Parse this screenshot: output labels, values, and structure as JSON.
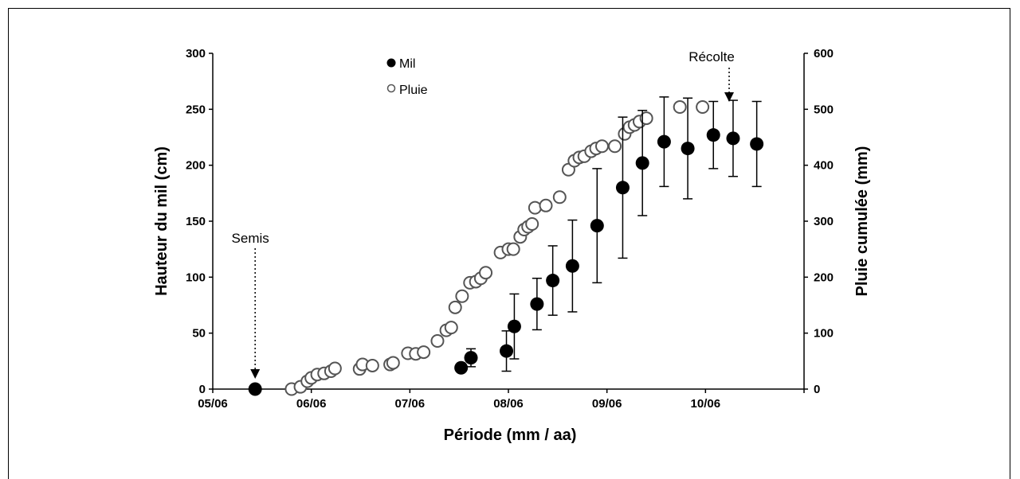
{
  "chart_data": {
    "type": "scatter",
    "xlabel": "Période (mm / aa)",
    "ylabel": "Hauteur du mil (cm)",
    "y2label": "Pluie cumulée (mm)",
    "x_ticks": [
      "05/06",
      "06/06",
      "07/06",
      "08/06",
      "09/06",
      "10/06"
    ],
    "x_range_months": [
      5,
      11
    ],
    "ylim": [
      0,
      300
    ],
    "y_ticks": [
      0,
      50,
      100,
      150,
      200,
      250,
      300
    ],
    "y2lim": [
      0,
      600
    ],
    "y2_ticks": [
      0,
      100,
      200,
      300,
      400,
      500,
      600
    ],
    "grid": false,
    "legend_position": "top-center",
    "annotations": [
      {
        "text": "Semis",
        "x": 5.43,
        "y": 0
      },
      {
        "text": "Récolte",
        "x": 10.24,
        "y": 257
      }
    ],
    "series": [
      {
        "name": "Mil",
        "axis": "left",
        "marker": "filled-circle",
        "color": "#000000",
        "points": [
          {
            "x": 5.43,
            "y": 0
          },
          {
            "x": 7.52,
            "y": 19,
            "err": 3
          },
          {
            "x": 7.62,
            "y": 28,
            "err": 8
          },
          {
            "x": 7.98,
            "y": 34,
            "err": 18
          },
          {
            "x": 8.06,
            "y": 56,
            "err": 29
          },
          {
            "x": 8.29,
            "y": 76,
            "err": 23
          },
          {
            "x": 8.45,
            "y": 97,
            "err": 31
          },
          {
            "x": 8.65,
            "y": 110,
            "err": 41
          },
          {
            "x": 8.9,
            "y": 146,
            "err": 51
          },
          {
            "x": 9.16,
            "y": 180,
            "err": 63
          },
          {
            "x": 9.36,
            "y": 202,
            "err": 47
          },
          {
            "x": 9.58,
            "y": 221,
            "err": 40
          },
          {
            "x": 9.82,
            "y": 215,
            "err": 45
          },
          {
            "x": 10.08,
            "y": 227,
            "err": 30
          },
          {
            "x": 10.28,
            "y": 224,
            "err": 34
          },
          {
            "x": 10.52,
            "y": 219,
            "err": 38
          }
        ]
      },
      {
        "name": "Pluie",
        "axis": "right",
        "marker": "open-circle",
        "color": "#555555",
        "points": [
          {
            "x": 5.8,
            "y": 0
          },
          {
            "x": 5.89,
            "y": 4
          },
          {
            "x": 5.96,
            "y": 14
          },
          {
            "x": 6.0,
            "y": 20
          },
          {
            "x": 6.06,
            "y": 26
          },
          {
            "x": 6.13,
            "y": 28
          },
          {
            "x": 6.2,
            "y": 32
          },
          {
            "x": 6.24,
            "y": 37
          },
          {
            "x": 6.49,
            "y": 36
          },
          {
            "x": 6.52,
            "y": 44
          },
          {
            "x": 6.62,
            "y": 42
          },
          {
            "x": 6.8,
            "y": 44
          },
          {
            "x": 6.83,
            "y": 47
          },
          {
            "x": 6.98,
            "y": 64
          },
          {
            "x": 7.06,
            "y": 63
          },
          {
            "x": 7.14,
            "y": 66
          },
          {
            "x": 7.28,
            "y": 86
          },
          {
            "x": 7.37,
            "y": 105
          },
          {
            "x": 7.42,
            "y": 110
          },
          {
            "x": 7.46,
            "y": 146
          },
          {
            "x": 7.53,
            "y": 166
          },
          {
            "x": 7.61,
            "y": 190
          },
          {
            "x": 7.67,
            "y": 192
          },
          {
            "x": 7.72,
            "y": 198
          },
          {
            "x": 7.77,
            "y": 208
          },
          {
            "x": 7.92,
            "y": 244
          },
          {
            "x": 8.0,
            "y": 250
          },
          {
            "x": 8.05,
            "y": 250
          },
          {
            "x": 8.12,
            "y": 272
          },
          {
            "x": 8.16,
            "y": 285
          },
          {
            "x": 8.2,
            "y": 290
          },
          {
            "x": 8.24,
            "y": 295
          },
          {
            "x": 8.27,
            "y": 324
          },
          {
            "x": 8.38,
            "y": 328
          },
          {
            "x": 8.52,
            "y": 343
          },
          {
            "x": 8.61,
            "y": 392
          },
          {
            "x": 8.67,
            "y": 408
          },
          {
            "x": 8.72,
            "y": 414
          },
          {
            "x": 8.77,
            "y": 416
          },
          {
            "x": 8.84,
            "y": 425
          },
          {
            "x": 8.89,
            "y": 430
          },
          {
            "x": 8.95,
            "y": 434
          },
          {
            "x": 9.08,
            "y": 434
          },
          {
            "x": 9.18,
            "y": 456
          },
          {
            "x": 9.23,
            "y": 468
          },
          {
            "x": 9.28,
            "y": 472
          },
          {
            "x": 9.33,
            "y": 478
          },
          {
            "x": 9.4,
            "y": 484
          },
          {
            "x": 9.74,
            "y": 504
          },
          {
            "x": 9.97,
            "y": 504
          }
        ]
      }
    ]
  }
}
